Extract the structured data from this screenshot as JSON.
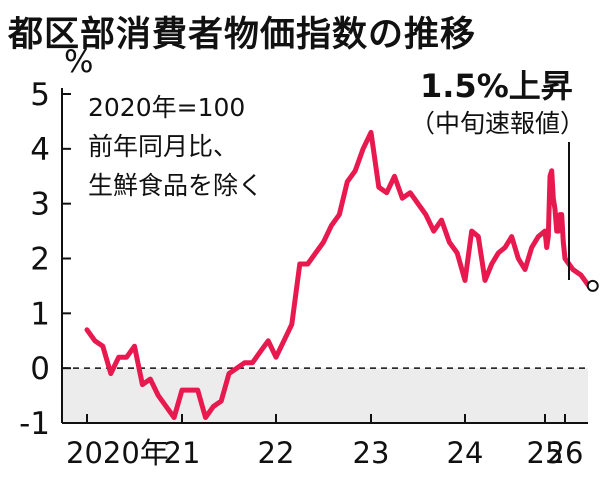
{
  "title": "都区部消費者物価指数の推移",
  "unit": "%",
  "notes": [
    "2020年=100",
    "前年同月比、",
    "生鮮食品を除く"
  ],
  "annotation": {
    "main": "1.5%上昇",
    "sub": "（中旬速報値）"
  },
  "colors": {
    "line": "#e8194f",
    "negative_band": "#ececec",
    "axis": "#111111"
  },
  "chart_data": {
    "type": "line",
    "y_ticks": [
      "5",
      "4",
      "3",
      "2",
      "1",
      "0",
      "-1"
    ],
    "x_ticks": [
      "2020年",
      "21",
      "22",
      "23",
      "24",
      "25",
      "26"
    ],
    "ylim": [
      -1,
      5
    ],
    "zero_line": "dashed",
    "series": [
      {
        "values": [
          [
            "2020-01",
            0.7
          ],
          [
            "2020-02",
            0.5
          ],
          [
            "2020-03",
            0.4
          ],
          [
            "2020-04",
            -0.1
          ],
          [
            "2020-05",
            0.2
          ],
          [
            "2020-06",
            0.2
          ],
          [
            "2020-07",
            0.4
          ],
          [
            "2020-08",
            -0.3
          ],
          [
            "2020-09",
            -0.2
          ],
          [
            "2020-10",
            -0.5
          ],
          [
            "2020-11",
            -0.7
          ],
          [
            "2020-12",
            -0.9
          ],
          [
            "2021-01",
            -0.4
          ],
          [
            "2021-02",
            -0.4
          ],
          [
            "2021-03",
            -0.4
          ],
          [
            "2021-04",
            -0.9
          ],
          [
            "2021-05",
            -0.7
          ],
          [
            "2021-06",
            -0.6
          ],
          [
            "2021-07",
            -0.1
          ],
          [
            "2021-08",
            0.0
          ],
          [
            "2021-09",
            0.1
          ],
          [
            "2021-10",
            0.1
          ],
          [
            "2021-11",
            0.3
          ],
          [
            "2021-12",
            0.5
          ],
          [
            "2022-01",
            0.2
          ],
          [
            "2022-02",
            0.5
          ],
          [
            "2022-03",
            0.8
          ],
          [
            "2022-04",
            1.9
          ],
          [
            "2022-05",
            1.9
          ],
          [
            "2022-06",
            2.1
          ],
          [
            "2022-07",
            2.3
          ],
          [
            "2022-08",
            2.6
          ],
          [
            "2022-09",
            2.8
          ],
          [
            "2022-10",
            3.4
          ],
          [
            "2022-11",
            3.6
          ],
          [
            "2022-12",
            4.0
          ],
          [
            "2023-01",
            4.3
          ],
          [
            "2023-02",
            3.3
          ],
          [
            "2023-03",
            3.2
          ],
          [
            "2023-04",
            3.5
          ],
          [
            "2023-05",
            3.1
          ],
          [
            "2023-06",
            3.2
          ],
          [
            "2023-07",
            3.0
          ],
          [
            "2023-08",
            2.8
          ],
          [
            "2023-09",
            2.5
          ],
          [
            "2023-10",
            2.7
          ],
          [
            "2023-11",
            2.3
          ],
          [
            "2023-12",
            2.1
          ],
          [
            "2024-01",
            1.6
          ],
          [
            "2024-02",
            2.5
          ],
          [
            "2024-03",
            2.4
          ],
          [
            "2024-04",
            1.6
          ],
          [
            "2024-05",
            1.9
          ],
          [
            "2024-06",
            2.1
          ],
          [
            "2024-07",
            2.2
          ],
          [
            "2024-08",
            2.4
          ],
          [
            "2024-09",
            2.0
          ],
          [
            "2024-10",
            1.8
          ],
          [
            "2024-11",
            2.2
          ],
          [
            "2024-12",
            2.4
          ],
          [
            "2025-01",
            2.5
          ],
          [
            "2025-02",
            2.2
          ],
          [
            "2025-03",
            2.4
          ],
          [
            "2025-04",
            3.5
          ],
          [
            "2025-05",
            3.6
          ],
          [
            "2025-06",
            3.1
          ],
          [
            "2025-07",
            2.9
          ],
          [
            "2025-08",
            2.5
          ],
          [
            "2025-09",
            2.5
          ],
          [
            "2025-10",
            2.8
          ],
          [
            "2025-11",
            2.8
          ],
          [
            "2025-12",
            2.3
          ],
          [
            "2026-01",
            2.0
          ],
          [
            "2026-02",
            1.8
          ],
          [
            "2026-03",
            1.7
          ],
          [
            "2026-04",
            1.5
          ]
        ]
      }
    ],
    "highlight_last_point": true
  }
}
